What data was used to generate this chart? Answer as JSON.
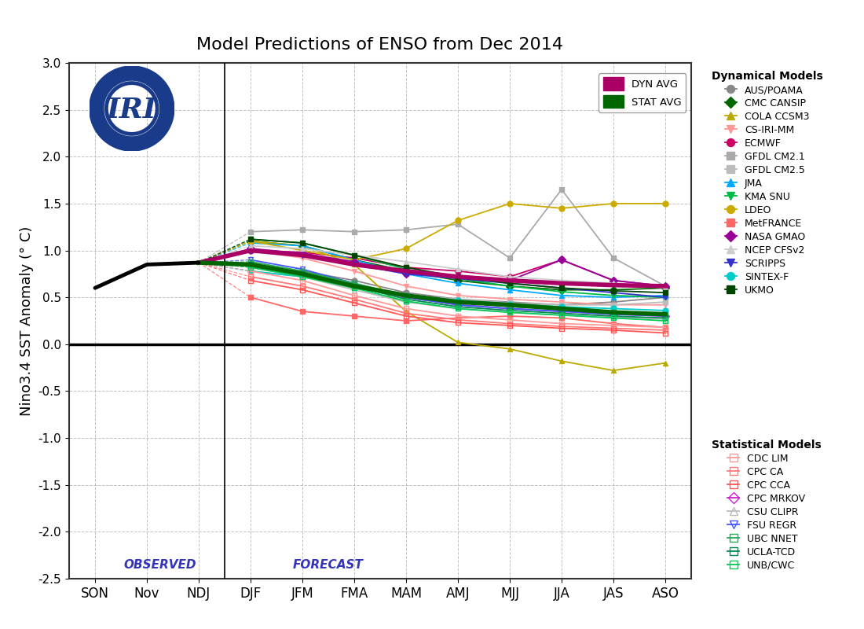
{
  "title": "Model Predictions of ENSO from Dec 2014",
  "ylabel": "Nino3.4 SST Anomaly (° C)",
  "xtick_labels": [
    "SON",
    "Nov",
    "NDJ",
    "DJF",
    "JFM",
    "FMA",
    "MAM",
    "AMJ",
    "MJJ",
    "JJA",
    "JAS",
    "ASO"
  ],
  "ylim": [
    -2.5,
    3.0
  ],
  "yticks": [
    -2.5,
    -2.0,
    -1.5,
    -1.0,
    -0.5,
    0.0,
    0.5,
    1.0,
    1.5,
    2.0,
    2.5,
    3.0
  ],
  "observed_label": "OBSERVED",
  "forecast_label": "FORECAST",
  "label_color": "#3333bb",
  "observed_data": {
    "x": [
      0,
      1,
      2
    ],
    "y": [
      0.6,
      0.85,
      0.87
    ]
  },
  "dyn_avg": {
    "x": [
      2,
      3,
      4,
      5,
      6,
      7,
      8,
      9,
      10,
      11
    ],
    "y": [
      0.87,
      1.0,
      0.95,
      0.85,
      0.78,
      0.72,
      0.68,
      0.65,
      0.63,
      0.62
    ],
    "color": "#aa0066",
    "lw": 4.0
  },
  "stat_avg": {
    "x": [
      2,
      3,
      4,
      5,
      6,
      7,
      8,
      9,
      10,
      11
    ],
    "y": [
      0.87,
      0.85,
      0.75,
      0.62,
      0.52,
      0.45,
      0.42,
      0.38,
      0.34,
      0.32
    ],
    "color": "#006600",
    "lw": 4.0
  },
  "dynamical_models": [
    {
      "name": "AUS/POAMA",
      "color": "#888888",
      "marker": "o",
      "ls": "-",
      "x": [
        3,
        4,
        5,
        6,
        7,
        8,
        9,
        10,
        11
      ],
      "y": [
        0.82,
        0.78,
        0.68,
        0.55,
        0.48,
        0.45,
        0.42,
        0.45,
        0.5
      ]
    },
    {
      "name": "CMC CANSIP",
      "color": "#006600",
      "marker": "D",
      "ls": "-",
      "x": [
        3,
        4,
        5,
        6,
        7,
        8,
        9,
        10,
        11
      ],
      "y": [
        1.1,
        1.05,
        0.9,
        0.78,
        0.68,
        0.62,
        0.58,
        0.58,
        0.6
      ]
    },
    {
      "name": "COLA CCSM3",
      "color": "#bbaa00",
      "marker": "^",
      "ls": "-",
      "x": [
        3,
        4,
        5,
        6,
        7,
        8,
        9,
        10,
        11
      ],
      "y": [
        1.1,
        1.05,
        0.85,
        0.35,
        0.02,
        -0.05,
        -0.18,
        -0.28,
        -0.2
      ]
    },
    {
      "name": "CS-IRI-MM",
      "color": "#ff9999",
      "marker": "v",
      "ls": "-",
      "x": [
        3,
        4,
        5,
        6,
        7,
        8,
        9,
        10,
        11
      ],
      "y": [
        1.0,
        0.92,
        0.78,
        0.62,
        0.52,
        0.48,
        0.45,
        0.42,
        0.42
      ]
    },
    {
      "name": "ECMWF",
      "color": "#cc0066",
      "marker": "o",
      "ls": "-",
      "x": [
        3,
        4,
        5,
        6,
        7,
        8,
        9,
        10,
        11
      ],
      "y": [
        1.0,
        0.98,
        0.92,
        0.82,
        0.78,
        0.72,
        0.9,
        0.68,
        0.62
      ]
    },
    {
      "name": "GFDL CM2.1",
      "color": "#aaaaaa",
      "marker": "s",
      "ls": "-",
      "x": [
        3,
        4,
        5,
        6,
        7,
        8,
        9,
        10,
        11
      ],
      "y": [
        1.2,
        1.22,
        1.2,
        1.22,
        1.28,
        0.92,
        1.65,
        0.92,
        0.62
      ]
    },
    {
      "name": "GFDL CM2.5",
      "color": "#bbbbbb",
      "marker": "s",
      "ls": "-",
      "x": [
        3,
        4,
        5,
        6,
        7,
        8,
        9,
        10,
        11
      ],
      "y": [
        0.78,
        0.72,
        0.6,
        0.52,
        0.48,
        0.44,
        0.42,
        0.42,
        0.45
      ]
    },
    {
      "name": "JMA",
      "color": "#00aaff",
      "marker": "^",
      "ls": "-",
      "x": [
        3,
        4,
        5,
        6,
        7,
        8,
        9,
        10,
        11
      ],
      "y": [
        1.08,
        1.05,
        0.9,
        0.75,
        0.65,
        0.58,
        0.52,
        0.5,
        0.52
      ]
    },
    {
      "name": "KMA SNU",
      "color": "#00bb44",
      "marker": "v",
      "ls": "-",
      "x": [
        3,
        4,
        5,
        6,
        7,
        8,
        9,
        10,
        11
      ],
      "y": [
        1.12,
        1.08,
        0.95,
        0.8,
        0.7,
        0.62,
        0.56,
        0.52,
        0.5
      ]
    },
    {
      "name": "LDEO",
      "color": "#ccaa00",
      "marker": "o",
      "ls": "-",
      "x": [
        3,
        4,
        5,
        6,
        7,
        8,
        9,
        10,
        11
      ],
      "y": [
        1.1,
        1.0,
        0.9,
        1.02,
        1.32,
        1.5,
        1.45,
        1.5,
        1.5
      ]
    },
    {
      "name": "MetFRANCE",
      "color": "#ff6666",
      "marker": "s",
      "ls": "-",
      "x": [
        3,
        4,
        5,
        6,
        7,
        8,
        9,
        10,
        11
      ],
      "y": [
        0.5,
        0.35,
        0.3,
        0.25,
        0.28,
        0.3,
        0.28,
        0.22,
        0.18
      ]
    },
    {
      "name": "NASA GMAO",
      "color": "#990099",
      "marker": "D",
      "ls": "-",
      "x": [
        3,
        4,
        5,
        6,
        7,
        8,
        9,
        10,
        11
      ],
      "y": [
        1.02,
        0.97,
        0.88,
        0.75,
        0.72,
        0.68,
        0.9,
        0.68,
        0.62
      ]
    },
    {
      "name": "NCEP CFSv2",
      "color": "#cccccc",
      "marker": "^",
      "ls": "-",
      "x": [
        3,
        4,
        5,
        6,
        7,
        8,
        9,
        10,
        11
      ],
      "y": [
        1.05,
        1.02,
        0.95,
        0.88,
        0.8,
        0.72,
        0.68,
        0.65,
        0.6
      ]
    },
    {
      "name": "SCRIPPS",
      "color": "#3333cc",
      "marker": "v",
      "ls": "-",
      "x": [
        3,
        4,
        5,
        6,
        7,
        8,
        9,
        10,
        11
      ],
      "y": [
        1.0,
        0.95,
        0.85,
        0.75,
        0.7,
        0.65,
        0.6,
        0.55,
        0.5
      ]
    },
    {
      "name": "SINTEX-F",
      "color": "#00cccc",
      "marker": "o",
      "ls": "-",
      "x": [
        3,
        4,
        5,
        6,
        7,
        8,
        9,
        10,
        11
      ],
      "y": [
        0.78,
        0.72,
        0.62,
        0.52,
        0.47,
        0.43,
        0.4,
        0.38,
        0.36
      ]
    },
    {
      "name": "UKMO",
      "color": "#004400",
      "marker": "s",
      "ls": "-",
      "x": [
        3,
        4,
        5,
        6,
        7,
        8,
        9,
        10,
        11
      ],
      "y": [
        1.12,
        1.08,
        0.95,
        0.82,
        0.72,
        0.65,
        0.6,
        0.57,
        0.55
      ]
    }
  ],
  "statistical_models": [
    {
      "name": "CDC LIM",
      "color": "#ff9999",
      "marker": "s",
      "fillstyle": "none",
      "ls": "-",
      "x": [
        3,
        4,
        5,
        6,
        7,
        8,
        9,
        10,
        11
      ],
      "y": [
        0.78,
        0.68,
        0.52,
        0.38,
        0.3,
        0.26,
        0.22,
        0.2,
        0.18
      ]
    },
    {
      "name": "CPC CA",
      "color": "#ff7777",
      "marker": "s",
      "fillstyle": "none",
      "ls": "-",
      "x": [
        3,
        4,
        5,
        6,
        7,
        8,
        9,
        10,
        11
      ],
      "y": [
        0.72,
        0.62,
        0.48,
        0.33,
        0.26,
        0.22,
        0.19,
        0.17,
        0.15
      ]
    },
    {
      "name": "CPC CCA",
      "color": "#ff5555",
      "marker": "s",
      "fillstyle": "none",
      "ls": "-",
      "x": [
        3,
        4,
        5,
        6,
        7,
        8,
        9,
        10,
        11
      ],
      "y": [
        0.68,
        0.58,
        0.44,
        0.3,
        0.23,
        0.2,
        0.17,
        0.15,
        0.12
      ]
    },
    {
      "name": "CPC MRKOV",
      "color": "#cc22cc",
      "marker": "D",
      "fillstyle": "none",
      "ls": "-",
      "x": [
        3,
        4,
        5,
        6,
        7,
        8,
        9,
        10,
        11
      ],
      "y": [
        0.85,
        0.75,
        0.62,
        0.5,
        0.42,
        0.38,
        0.35,
        0.32,
        0.3
      ]
    },
    {
      "name": "CSU CLIPR",
      "color": "#bbbbbb",
      "marker": "^",
      "fillstyle": "none",
      "ls": "-",
      "x": [
        3,
        4,
        5,
        6,
        7,
        8,
        9,
        10,
        11
      ],
      "y": [
        0.82,
        0.72,
        0.58,
        0.45,
        0.38,
        0.34,
        0.31,
        0.29,
        0.27
      ]
    },
    {
      "name": "FSU REGR",
      "color": "#4455ff",
      "marker": "v",
      "fillstyle": "none",
      "ls": "-",
      "x": [
        3,
        4,
        5,
        6,
        7,
        8,
        9,
        10,
        11
      ],
      "y": [
        0.9,
        0.8,
        0.65,
        0.5,
        0.42,
        0.38,
        0.35,
        0.32,
        0.3
      ]
    },
    {
      "name": "UBC NNET",
      "color": "#22aa55",
      "marker": "s",
      "fillstyle": "none",
      "ls": "-",
      "x": [
        3,
        4,
        5,
        6,
        7,
        8,
        9,
        10,
        11
      ],
      "y": [
        0.88,
        0.78,
        0.65,
        0.52,
        0.45,
        0.4,
        0.37,
        0.34,
        0.32
      ]
    },
    {
      "name": "UCLA-TCD",
      "color": "#008855",
      "marker": "s",
      "fillstyle": "none",
      "ls": "-",
      "x": [
        3,
        4,
        5,
        6,
        7,
        8,
        9,
        10,
        11
      ],
      "y": [
        0.85,
        0.75,
        0.62,
        0.48,
        0.4,
        0.36,
        0.33,
        0.3,
        0.28
      ]
    },
    {
      "name": "UNB/CWC",
      "color": "#00cc55",
      "marker": "s",
      "fillstyle": "none",
      "ls": "-",
      "x": [
        3,
        4,
        5,
        6,
        7,
        8,
        9,
        10,
        11
      ],
      "y": [
        0.82,
        0.72,
        0.6,
        0.46,
        0.38,
        0.34,
        0.31,
        0.28,
        0.25
      ]
    }
  ],
  "background_color": "#ffffff",
  "grid_color": "#bbbbbb",
  "logo_color": "#1a3a8a"
}
